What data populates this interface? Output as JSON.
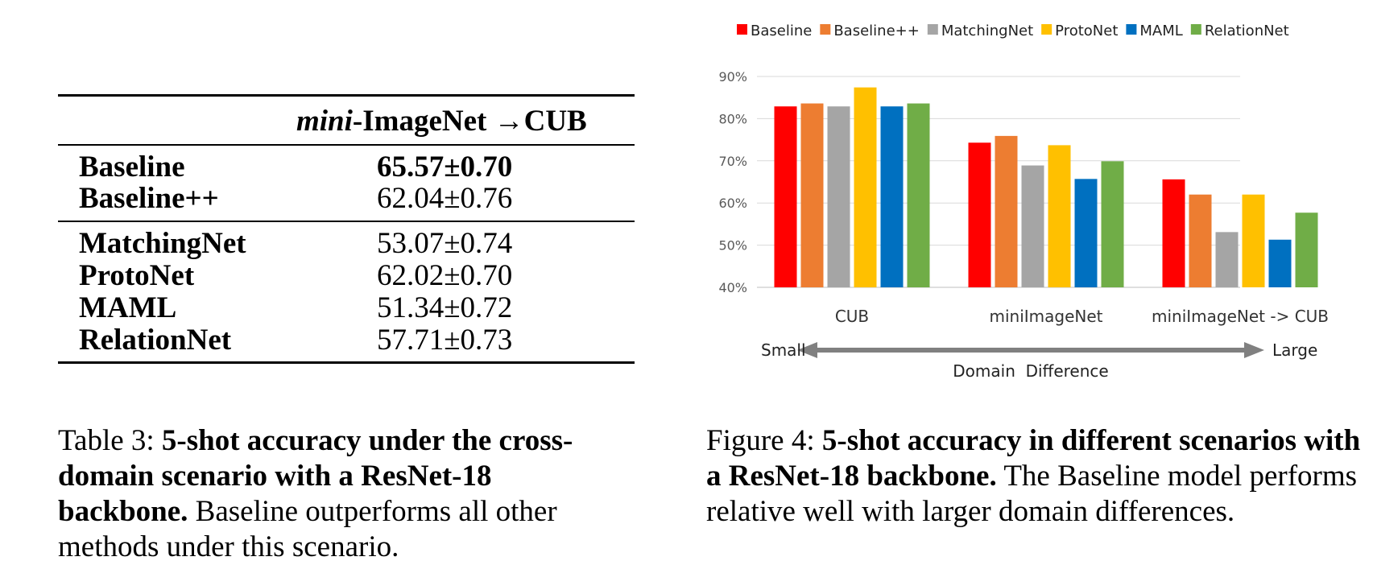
{
  "table": {
    "column_header_italic": "mini",
    "column_header_rest": "-ImageNet →CUB",
    "groups": [
      [
        {
          "method": "Baseline",
          "value": "65.57±0.70",
          "best": true
        },
        {
          "method": "Baseline++",
          "value": "62.04±0.76",
          "best": false
        }
      ],
      [
        {
          "method": "MatchingNet",
          "value": "53.07±0.74",
          "best": false
        },
        {
          "method": "ProtoNet",
          "value": "62.02±0.70",
          "best": false
        },
        {
          "method": "MAML",
          "value": "51.34±0.72",
          "best": false
        },
        {
          "method": "RelationNet",
          "value": "57.71±0.73",
          "best": false
        }
      ]
    ]
  },
  "table_caption": {
    "prefix": "Table 3: ",
    "bold": "5-shot accuracy under the cross-domain scenario with a ResNet-18 backbone.",
    "rest": " Baseline outperforms all other methods under this scenario."
  },
  "figure_caption": {
    "prefix": "Figure 4: ",
    "bold": "5-shot accuracy in different scenarios with a ResNet-18 backbone.",
    "rest": " The Baseline model performs relative well with larger domain differences."
  },
  "chart_data": {
    "type": "bar",
    "categories": [
      "CUB",
      "miniImageNet",
      "miniImageNet  ->  CUB"
    ],
    "series": [
      {
        "name": "Baseline",
        "color": "#FF0000",
        "values": [
          82.9,
          74.3,
          65.6
        ]
      },
      {
        "name": "Baseline++",
        "color": "#ED7D31",
        "values": [
          83.6,
          75.9,
          62.0
        ]
      },
      {
        "name": "MatchingNet",
        "color": "#A5A5A5",
        "values": [
          82.9,
          68.9,
          53.1
        ]
      },
      {
        "name": "ProtoNet",
        "color": "#FFC000",
        "values": [
          87.4,
          73.7,
          62.0
        ]
      },
      {
        "name": "MAML",
        "color": "#0070C0",
        "values": [
          82.9,
          65.7,
          51.3
        ]
      },
      {
        "name": "RelationNet",
        "color": "#70AD47",
        "values": [
          83.6,
          69.9,
          57.7
        ]
      }
    ],
    "ylim": [
      40,
      90
    ],
    "yticks": [
      "40%",
      "50%",
      "60%",
      "70%",
      "80%",
      "90%"
    ],
    "grid": true,
    "legend_position": "top",
    "axis_arrow": {
      "left_label": "Small",
      "right_label": "Large",
      "caption": "Domain  Difference"
    }
  }
}
